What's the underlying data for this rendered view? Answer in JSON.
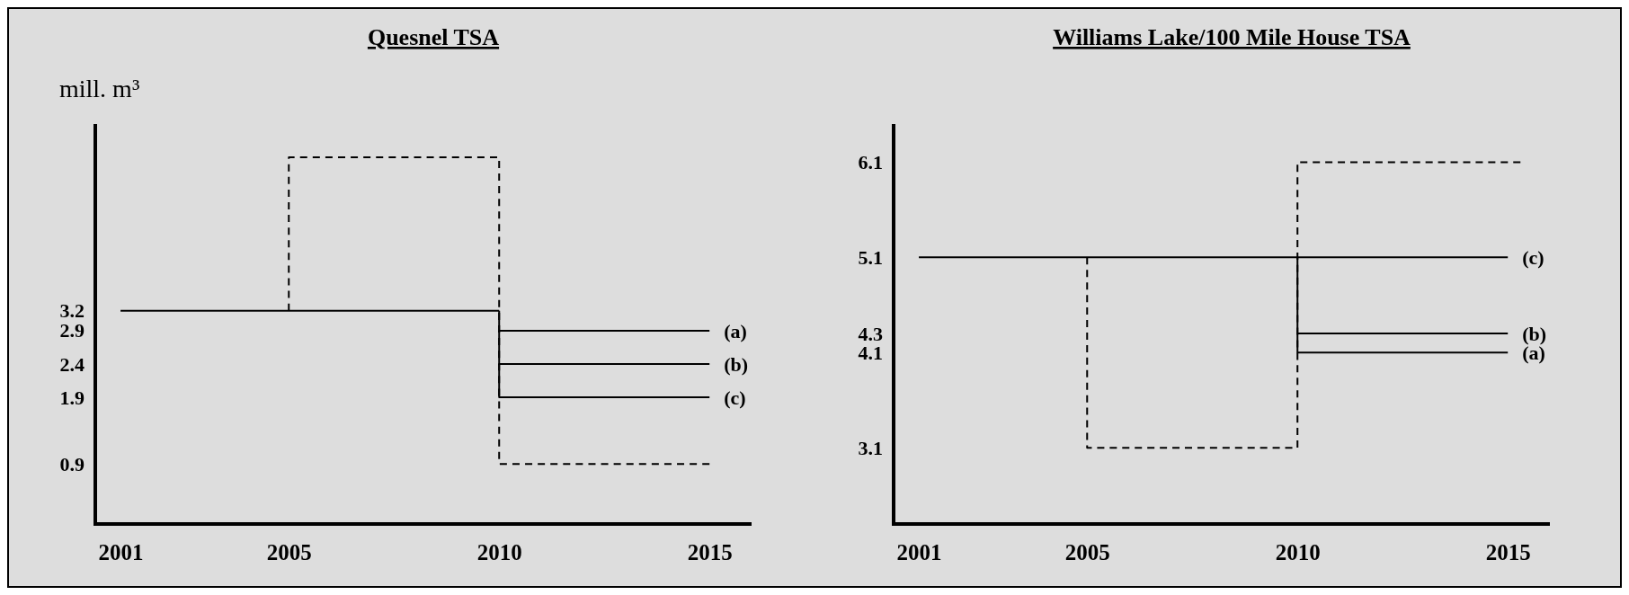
{
  "chart_data": [
    {
      "type": "line",
      "title": "Quesnel TSA",
      "ylabel": "mill. m³",
      "xlim": [
        2000.4,
        2016
      ],
      "ylim": [
        0,
        6
      ],
      "xticks": [
        2001,
        2005,
        2010,
        2015
      ],
      "yticks": [
        0.9,
        1.9,
        2.4,
        2.9,
        3.2
      ],
      "line_style": "solid",
      "series": [
        {
          "color": "#000000",
          "x": [
            2001,
            2010
          ],
          "values": [
            3.2,
            3.2
          ]
        },
        {
          "name": "(a)",
          "color": "#000000",
          "x": [
            2010,
            2010,
            2015
          ],
          "values": [
            3.2,
            2.9,
            2.9
          ]
        },
        {
          "name": "(b)",
          "color": "#000000",
          "x": [
            2010,
            2010,
            2015
          ],
          "values": [
            2.9,
            2.4,
            2.4
          ]
        },
        {
          "name": "(c)",
          "color": "#000000",
          "x": [
            2010,
            2010,
            2015
          ],
          "values": [
            2.4,
            1.9,
            1.9
          ]
        },
        {
          "color": "#000000",
          "line_style": "dashed",
          "x": [
            2005,
            2005,
            2010,
            2010,
            2015
          ],
          "values": [
            3.2,
            5.5,
            5.5,
            0.9,
            0.9
          ]
        }
      ]
    },
    {
      "type": "line",
      "title": "Williams Lake/100 Mile House TSA",
      "xlim": [
        2000.4,
        2016
      ],
      "ylim": [
        2.3,
        6.5
      ],
      "xticks": [
        2001,
        2005,
        2010,
        2015
      ],
      "yticks": [
        3.1,
        4.1,
        4.3,
        5.1,
        6.1
      ],
      "line_style": "solid",
      "series": [
        {
          "name": "(c)",
          "color": "#000000",
          "x": [
            2001,
            2015
          ],
          "values": [
            5.1,
            5.1
          ]
        },
        {
          "name": "(b)",
          "color": "#000000",
          "x": [
            2010,
            2010,
            2015
          ],
          "values": [
            5.1,
            4.3,
            4.3
          ]
        },
        {
          "name": "(a)",
          "color": "#000000",
          "x": [
            2010,
            2010,
            2015
          ],
          "values": [
            4.3,
            4.1,
            4.1
          ]
        },
        {
          "color": "#000000",
          "line_style": "dashed",
          "x": [
            2005,
            2005,
            2010,
            2010,
            2015.3
          ],
          "values": [
            5.1,
            3.1,
            3.1,
            6.1,
            6.1
          ]
        }
      ]
    }
  ]
}
